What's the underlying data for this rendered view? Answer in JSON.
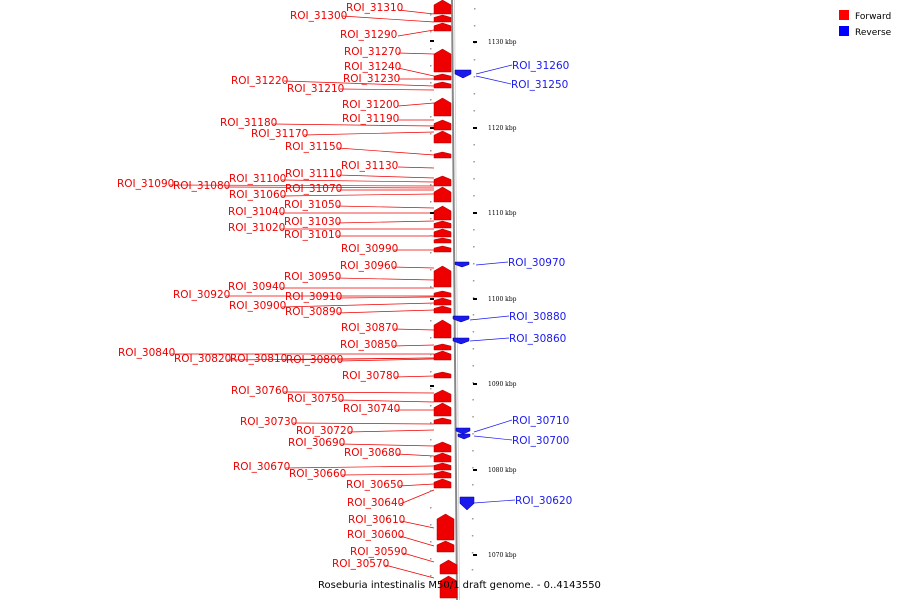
{
  "caption": "Roseburia intestinalis M50/1 draft genome. - 0..4143550",
  "legend": [
    {
      "label": "Forward",
      "color": "#ff0000"
    },
    {
      "label": "Reverse",
      "color": "#0000ff"
    }
  ],
  "colors": {
    "forward": "#ee0000",
    "reverse": "#1a1aee",
    "axis": "#888888"
  },
  "ticks": [
    "1130 kbp",
    "1120 kbp",
    "1110 kbp",
    "1100 kbp",
    "1090 kbp",
    "1080 kbp",
    "1070 kbp"
  ],
  "forward_labels": [
    "ROI_31310",
    "ROI_31300",
    "ROI_31290",
    "ROI_31270",
    "ROI_31240",
    "ROI_31230",
    "ROI_31220",
    "ROI_31210",
    "ROI_31200",
    "ROI_31190",
    "ROI_31180",
    "ROI_31170",
    "ROI_31150",
    "ROI_31130",
    "ROI_31110",
    "ROI_31100",
    "ROI_31090",
    "ROI_31080",
    "ROI_31070",
    "ROI_31060",
    "ROI_31050",
    "ROI_31040",
    "ROI_31030",
    "ROI_31020",
    "ROI_31010",
    "ROI_30990",
    "ROI_30960",
    "ROI_30950",
    "ROI_30940",
    "ROI_30920",
    "ROI_30910",
    "ROI_30900",
    "ROI_30890",
    "ROI_30870",
    "ROI_30850",
    "ROI_30840",
    "ROI_30820",
    "ROI_30810",
    "ROI_30800",
    "ROI_30780",
    "ROI_30760",
    "ROI_30750",
    "ROI_30740",
    "ROI_30730",
    "ROI_30720",
    "ROI_30690",
    "ROI_30680",
    "ROI_30670",
    "ROI_30660",
    "ROI_30650",
    "ROI_30640",
    "ROI_30610",
    "ROI_30600",
    "ROI_30590",
    "ROI_30570"
  ],
  "reverse_labels": [
    "ROI_31260",
    "ROI_31250",
    "ROI_30970",
    "ROI_30880",
    "ROI_30860",
    "ROI_30710",
    "ROI_30700",
    "ROI_30620"
  ]
}
